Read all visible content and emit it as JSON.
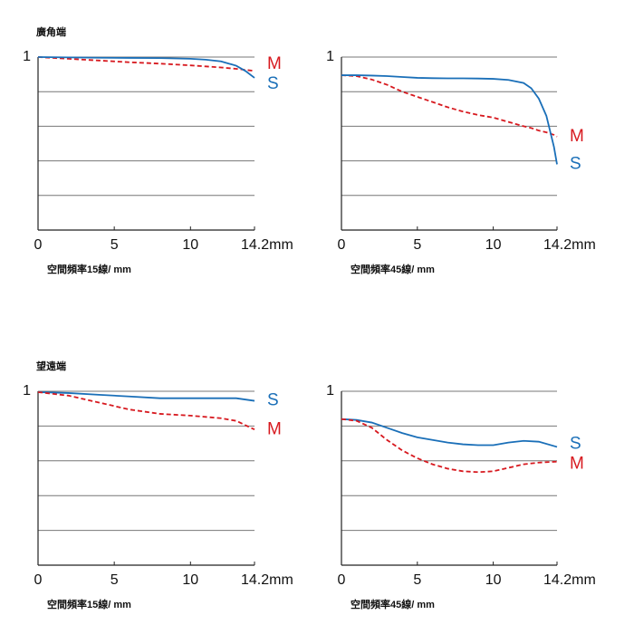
{
  "chart_data": [
    {
      "type": "line",
      "title": "廣角端",
      "xlabel": "空間頻率15線/ mm",
      "x": [
        0,
        2,
        4,
        6,
        8,
        10,
        11,
        12,
        13,
        13.6,
        14.2
      ],
      "xlim": [
        0,
        14.2
      ],
      "xticks": [
        0,
        5,
        10,
        {
          "value": 14.2,
          "label": "14.2mm"
        }
      ],
      "ylim": [
        0,
        1
      ],
      "yticks": [
        1
      ],
      "grid_values": [
        0.2,
        0.4,
        0.6,
        0.8,
        1
      ],
      "series": [
        {
          "name": "M",
          "color": "#d7191f",
          "dashed": true,
          "values": [
            1,
            0.99,
            0.98,
            0.97,
            0.962,
            0.952,
            0.946,
            0.94,
            0.932,
            0.926,
            0.92
          ]
        },
        {
          "name": "S",
          "color": "#1a6fb8",
          "dashed": false,
          "values": [
            1,
            0.998,
            0.996,
            0.995,
            0.994,
            0.99,
            0.985,
            0.975,
            0.95,
            0.92,
            0.88
          ]
        }
      ]
    },
    {
      "type": "line",
      "xlabel": "空間頻率45線/ mm",
      "x": [
        0,
        1,
        2,
        3,
        4,
        5,
        6,
        7,
        8,
        9,
        10,
        11,
        12,
        12.5,
        13,
        13.5,
        14,
        14.2
      ],
      "xlim": [
        0,
        14.2
      ],
      "xticks": [
        0,
        5,
        10,
        {
          "value": 14.2,
          "label": "14.2mm"
        }
      ],
      "ylim": [
        0,
        1
      ],
      "yticks": [
        1
      ],
      "grid_values": [
        0.2,
        0.4,
        0.6,
        0.8,
        1
      ],
      "series": [
        {
          "name": "M",
          "color": "#d7191f",
          "dashed": true,
          "values": [
            0.895,
            0.89,
            0.87,
            0.84,
            0.8,
            0.77,
            0.74,
            0.71,
            0.685,
            0.665,
            0.65,
            0.625,
            0.6,
            0.59,
            0.575,
            0.565,
            0.55,
            0.54
          ]
        },
        {
          "name": "S",
          "color": "#1a6fb8",
          "dashed": false,
          "values": [
            0.895,
            0.895,
            0.893,
            0.89,
            0.885,
            0.88,
            0.878,
            0.877,
            0.877,
            0.876,
            0.874,
            0.868,
            0.85,
            0.82,
            0.76,
            0.66,
            0.48,
            0.38
          ]
        }
      ]
    },
    {
      "type": "line",
      "title": "望遠端",
      "xlabel": "空間頻率15線/ mm",
      "x": [
        0,
        2,
        4,
        6,
        8,
        10,
        12,
        13,
        14.2
      ],
      "xlim": [
        0,
        14.2
      ],
      "xticks": [
        0,
        5,
        10,
        {
          "value": 14.2,
          "label": "14.2mm"
        }
      ],
      "ylim": [
        0,
        1
      ],
      "yticks": [
        1
      ],
      "grid_values": [
        0.2,
        0.4,
        0.6,
        0.8,
        1
      ],
      "series": [
        {
          "name": "S",
          "color": "#1a6fb8",
          "dashed": false,
          "values": [
            0.995,
            0.99,
            0.98,
            0.97,
            0.96,
            0.96,
            0.96,
            0.96,
            0.945
          ]
        },
        {
          "name": "M",
          "color": "#d7191f",
          "dashed": true,
          "values": [
            0.995,
            0.975,
            0.935,
            0.895,
            0.87,
            0.86,
            0.845,
            0.83,
            0.78
          ]
        }
      ]
    },
    {
      "type": "line",
      "xlabel": "空間頻率45線/ mm",
      "x": [
        0,
        1,
        2,
        3,
        4,
        5,
        6,
        7,
        8,
        9,
        10,
        11,
        12,
        13,
        14.2
      ],
      "xlim": [
        0,
        14.2
      ],
      "xticks": [
        0,
        5,
        10,
        {
          "value": 14.2,
          "label": "14.2mm"
        }
      ],
      "ylim": [
        0,
        1
      ],
      "yticks": [
        1
      ],
      "grid_values": [
        0.2,
        0.4,
        0.6,
        0.8,
        1
      ],
      "series": [
        {
          "name": "S",
          "color": "#1a6fb8",
          "dashed": false,
          "values": [
            0.84,
            0.835,
            0.82,
            0.79,
            0.76,
            0.735,
            0.72,
            0.705,
            0.695,
            0.69,
            0.69,
            0.705,
            0.715,
            0.71,
            0.68
          ]
        },
        {
          "name": "M",
          "color": "#d7191f",
          "dashed": true,
          "values": [
            0.84,
            0.83,
            0.79,
            0.72,
            0.66,
            0.615,
            0.58,
            0.555,
            0.54,
            0.535,
            0.54,
            0.56,
            0.58,
            0.59,
            0.595
          ]
        }
      ]
    }
  ]
}
